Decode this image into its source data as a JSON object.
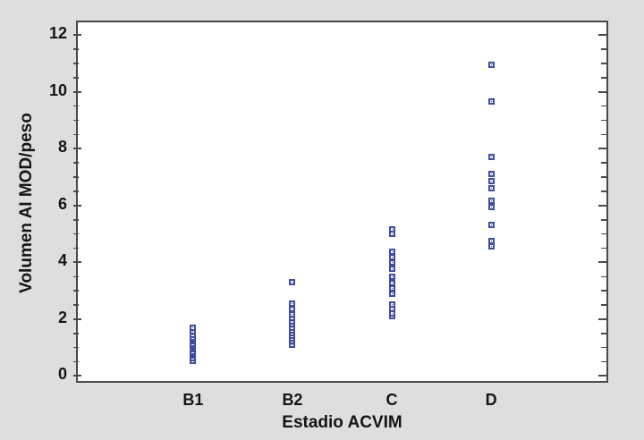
{
  "chart_data": {
    "type": "scatter",
    "subtype": "strip-plot-by-category",
    "xlabel": "Estadio ACVIM",
    "ylabel": "Volumen AI MOD/peso",
    "categories": [
      "B1",
      "B2",
      "C",
      "D"
    ],
    "ylim": [
      -0.3,
      12.45
    ],
    "yticks": [
      0,
      2,
      4,
      6,
      8,
      10,
      12
    ],
    "ytick_labels": [
      "0",
      "2",
      "4",
      "6",
      "8",
      "10",
      "12"
    ],
    "minor_tick_step": 0.5,
    "grid": "off",
    "legend": "none",
    "series": [
      {
        "name": "B1",
        "values": [
          1.65,
          1.52,
          1.38,
          1.3,
          1.22,
          1.15,
          1.08,
          1.0,
          0.95,
          0.88,
          0.8,
          0.72,
          0.65,
          0.58,
          0.48
        ]
      },
      {
        "name": "B2",
        "values": [
          3.25,
          2.5,
          2.3,
          2.1,
          1.98,
          1.86,
          1.75,
          1.65,
          1.55,
          1.45,
          1.35,
          1.25,
          1.15,
          1.05
        ]
      },
      {
        "name": "C",
        "values": [
          5.1,
          4.93,
          4.32,
          4.12,
          3.92,
          3.72,
          3.42,
          3.22,
          3.02,
          2.82,
          2.45,
          2.3,
          2.15,
          2.05
        ]
      },
      {
        "name": "D",
        "values": [
          10.9,
          9.6,
          7.65,
          7.05,
          6.8,
          6.55,
          6.12,
          5.9,
          5.25,
          4.7,
          4.5
        ]
      }
    ],
    "marker": {
      "shape": "open-square",
      "size": 7,
      "color": "#3d4da1",
      "fill": "#ffffff"
    },
    "colors": {
      "page_background": "#dedede",
      "plot_background": "#ffffff",
      "frame": "#4a4a4a",
      "text": "#141414"
    }
  }
}
